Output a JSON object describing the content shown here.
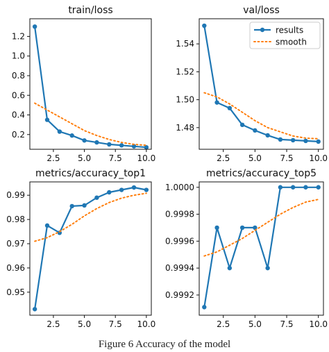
{
  "caption": "Figure 6 Accuracy of the model",
  "chart_data": [
    {
      "type": "line",
      "title": "train/loss",
      "xlim": [
        0.6,
        10.4
      ],
      "ylim": [
        0.05,
        1.38
      ],
      "xticks": [
        2.5,
        5.0,
        7.5,
        10.0
      ],
      "xtick_labels": [
        "2.5",
        "5.0",
        "7.5",
        "10.0"
      ],
      "yticks": [
        0.2,
        0.4,
        0.6,
        0.8,
        1.0,
        1.2
      ],
      "ytick_labels": [
        "0.2",
        "0.4",
        "0.6",
        "0.8",
        "1.0",
        "1.2"
      ],
      "grid": false,
      "series": [
        {
          "name": "results",
          "style": "line-markers",
          "color": "#1f77b4",
          "x": [
            1,
            2,
            3,
            4,
            5,
            6,
            7,
            8,
            9,
            10
          ],
          "y": [
            1.3,
            0.35,
            0.23,
            0.19,
            0.14,
            0.12,
            0.1,
            0.09,
            0.08,
            0.07
          ]
        },
        {
          "name": "smooth",
          "style": "dotted",
          "color": "#ff7f0e",
          "x": [
            1,
            2,
            3,
            4,
            5,
            6,
            7,
            8,
            9,
            10
          ],
          "y": [
            0.52,
            0.45,
            0.38,
            0.31,
            0.24,
            0.19,
            0.15,
            0.12,
            0.1,
            0.09
          ]
        }
      ]
    },
    {
      "type": "line",
      "title": "val/loss",
      "xlim": [
        0.6,
        10.4
      ],
      "ylim": [
        1.4645,
        1.558
      ],
      "xticks": [
        2.5,
        5.0,
        7.5,
        10.0
      ],
      "xtick_labels": [
        "2.5",
        "5.0",
        "7.5",
        "10.0"
      ],
      "yticks": [
        1.48,
        1.5,
        1.52,
        1.54
      ],
      "ytick_labels": [
        "1.48",
        "1.50",
        "1.52",
        "1.54"
      ],
      "grid": false,
      "legend": "top-right",
      "series": [
        {
          "name": "results",
          "style": "line-markers",
          "color": "#1f77b4",
          "x": [
            1,
            2,
            3,
            4,
            5,
            6,
            7,
            8,
            9,
            10
          ],
          "y": [
            1.553,
            1.498,
            1.494,
            1.482,
            1.478,
            1.4745,
            1.4715,
            1.471,
            1.4705,
            1.47
          ]
        },
        {
          "name": "smooth",
          "style": "dotted",
          "color": "#ff7f0e",
          "x": [
            1,
            2,
            3,
            4,
            5,
            6,
            7,
            8,
            9,
            10
          ],
          "y": [
            1.505,
            1.502,
            1.497,
            1.491,
            1.485,
            1.48,
            1.477,
            1.474,
            1.4725,
            1.472
          ]
        }
      ]
    },
    {
      "type": "line",
      "title": "metrics/accuracy_top1",
      "xlim": [
        0.6,
        10.4
      ],
      "ylim": [
        0.9405,
        0.9955
      ],
      "xticks": [
        2.5,
        5.0,
        7.5,
        10.0
      ],
      "xtick_labels": [
        "2.5",
        "5.0",
        "7.5",
        "10.0"
      ],
      "yticks": [
        0.95,
        0.96,
        0.97,
        0.98,
        0.99
      ],
      "ytick_labels": [
        "0.95",
        "0.96",
        "0.97",
        "0.98",
        "0.99"
      ],
      "grid": false,
      "series": [
        {
          "name": "results",
          "style": "line-markers",
          "color": "#1f77b4",
          "x": [
            1,
            2,
            3,
            4,
            5,
            6,
            7,
            8,
            9,
            10
          ],
          "y": [
            0.943,
            0.9775,
            0.9745,
            0.9855,
            0.9858,
            0.989,
            0.9912,
            0.9922,
            0.9932,
            0.9922
          ]
        },
        {
          "name": "smooth",
          "style": "dotted",
          "color": "#ff7f0e",
          "x": [
            1,
            2,
            3,
            4,
            5,
            6,
            7,
            8,
            9,
            10
          ],
          "y": [
            0.971,
            0.9725,
            0.975,
            0.978,
            0.9815,
            0.9845,
            0.987,
            0.9888,
            0.99,
            0.9908
          ]
        }
      ]
    },
    {
      "type": "line",
      "title": "metrics/accuracy_top5",
      "xlim": [
        0.6,
        10.4
      ],
      "ylim": [
        0.99905,
        1.00004
      ],
      "xticks": [
        2.5,
        5.0,
        7.5,
        10.0
      ],
      "xtick_labels": [
        "2.5",
        "5.0",
        "7.5",
        "10.0"
      ],
      "yticks": [
        0.9992,
        0.9994,
        0.9996,
        0.9998,
        1.0
      ],
      "ytick_labels": [
        "0.9992",
        "0.9994",
        "0.9996",
        "0.9998",
        "1.0000"
      ],
      "grid": false,
      "series": [
        {
          "name": "results",
          "style": "line-markers",
          "color": "#1f77b4",
          "x": [
            1,
            2,
            3,
            4,
            5,
            6,
            7,
            8,
            9,
            10
          ],
          "y": [
            0.99911,
            0.9997,
            0.9994,
            0.9997,
            0.9997,
            0.9994,
            1.0,
            1.0,
            1.0,
            1.0
          ]
        },
        {
          "name": "smooth",
          "style": "dotted",
          "color": "#ff7f0e",
          "x": [
            1,
            2,
            3,
            4,
            5,
            6,
            7,
            8,
            9,
            10
          ],
          "y": [
            0.99949,
            0.99952,
            0.99957,
            0.99962,
            0.99968,
            0.99974,
            0.9998,
            0.99985,
            0.99989,
            0.99991
          ]
        }
      ]
    }
  ]
}
